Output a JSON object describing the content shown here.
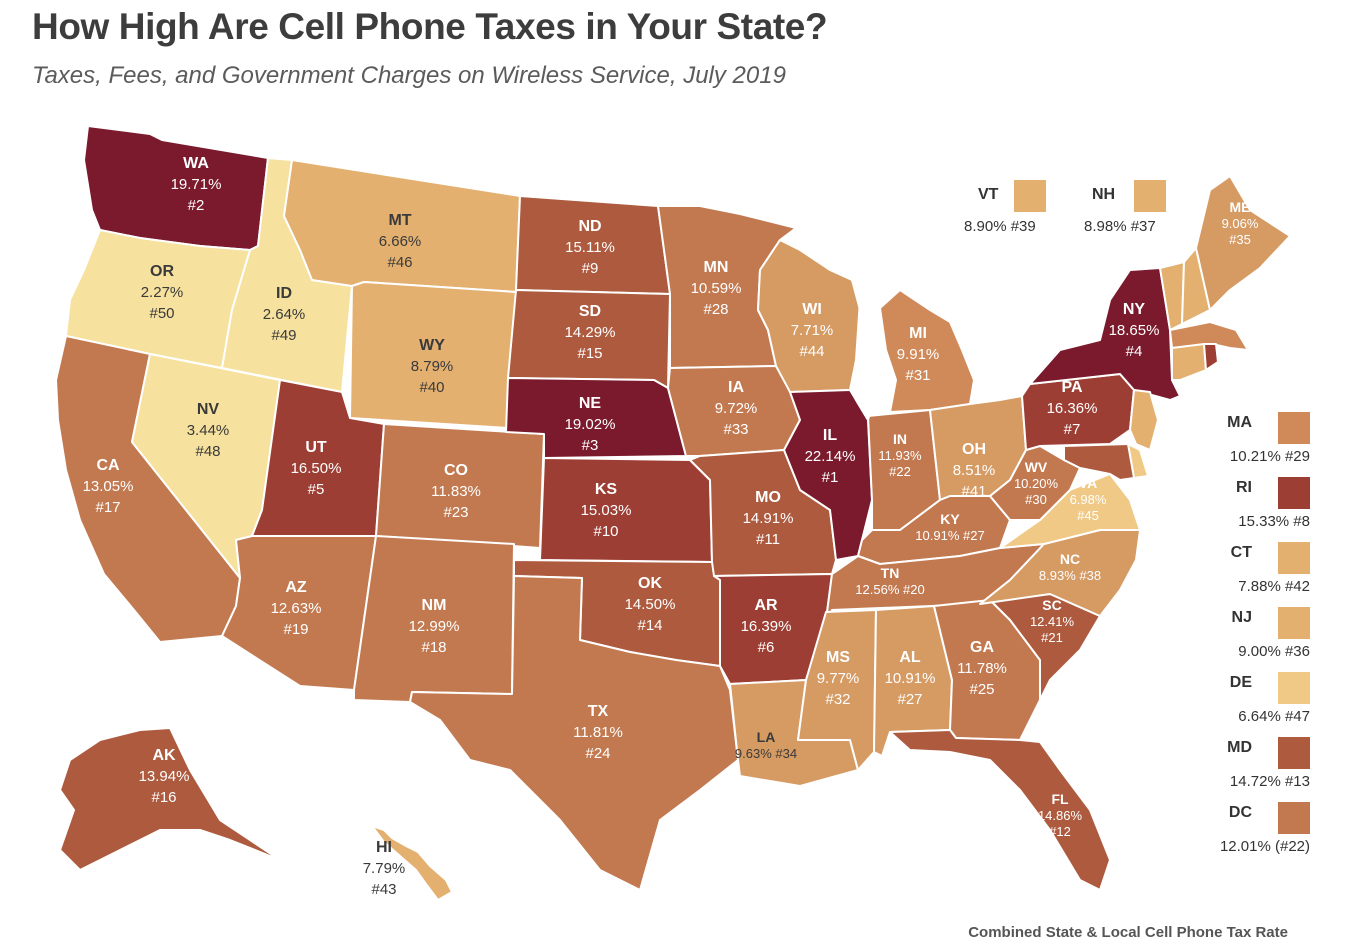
{
  "title": "How High Are Cell Phone Taxes in Your State?",
  "subtitle": "Taxes, Fees, and Government Charges on Wireless Service, July 2019",
  "source_note": "Combined State & Local Cell Phone Tax Rate",
  "colors": {
    "darkest": "#7a1a2c",
    "dark": "#9c3e33",
    "mid_dark": "#ad5a3e",
    "mid": "#c27950",
    "light_mid": "#d69a63",
    "light": "#e3b070",
    "lighter": "#efc985",
    "lightest": "#f6e19e",
    "border": "#ffffff"
  },
  "states": [
    {
      "abbr": "WA",
      "rate": "19.71%",
      "rank": "#2"
    },
    {
      "abbr": "OR",
      "rate": "2.27%",
      "rank": "#50"
    },
    {
      "abbr": "CA",
      "rate": "13.05%",
      "rank": "#17"
    },
    {
      "abbr": "ID",
      "rate": "2.64%",
      "rank": "#49"
    },
    {
      "abbr": "NV",
      "rate": "3.44%",
      "rank": "#48"
    },
    {
      "abbr": "MT",
      "rate": "6.66%",
      "rank": "#46"
    },
    {
      "abbr": "WY",
      "rate": "8.79%",
      "rank": "#40"
    },
    {
      "abbr": "UT",
      "rate": "16.50%",
      "rank": "#5"
    },
    {
      "abbr": "CO",
      "rate": "11.83%",
      "rank": "#23"
    },
    {
      "abbr": "AZ",
      "rate": "12.63%",
      "rank": "#19"
    },
    {
      "abbr": "NM",
      "rate": "12.99%",
      "rank": "#18"
    },
    {
      "abbr": "ND",
      "rate": "15.11%",
      "rank": "#9"
    },
    {
      "abbr": "SD",
      "rate": "14.29%",
      "rank": "#15"
    },
    {
      "abbr": "NE",
      "rate": "19.02%",
      "rank": "#3"
    },
    {
      "abbr": "KS",
      "rate": "15.03%",
      "rank": "#10"
    },
    {
      "abbr": "OK",
      "rate": "14.50%",
      "rank": "#14"
    },
    {
      "abbr": "TX",
      "rate": "11.81%",
      "rank": "#24"
    },
    {
      "abbr": "MN",
      "rate": "10.59%",
      "rank": "#28"
    },
    {
      "abbr": "IA",
      "rate": "9.72%",
      "rank": "#33"
    },
    {
      "abbr": "MO",
      "rate": "14.91%",
      "rank": "#11"
    },
    {
      "abbr": "AR",
      "rate": "16.39%",
      "rank": "#6"
    },
    {
      "abbr": "LA",
      "rate": "9.63%",
      "rank": "#34"
    },
    {
      "abbr": "WI",
      "rate": "7.71%",
      "rank": "#44"
    },
    {
      "abbr": "IL",
      "rate": "22.14%",
      "rank": "#1"
    },
    {
      "abbr": "MI",
      "rate": "9.91%",
      "rank": "#31"
    },
    {
      "abbr": "IN",
      "rate": "11.93%",
      "rank": "#22"
    },
    {
      "abbr": "OH",
      "rate": "8.51%",
      "rank": "#41"
    },
    {
      "abbr": "KY",
      "rate": "10.91%",
      "rank": "#27"
    },
    {
      "abbr": "TN",
      "rate": "12.56%",
      "rank": "#20"
    },
    {
      "abbr": "MS",
      "rate": "9.77%",
      "rank": "#32"
    },
    {
      "abbr": "AL",
      "rate": "10.91%",
      "rank": "#27"
    },
    {
      "abbr": "GA",
      "rate": "11.78%",
      "rank": "#25"
    },
    {
      "abbr": "FL",
      "rate": "14.86%",
      "rank": "#12"
    },
    {
      "abbr": "SC",
      "rate": "12.41%",
      "rank": "#21"
    },
    {
      "abbr": "NC",
      "rate": "8.93%",
      "rank": "#38"
    },
    {
      "abbr": "VA",
      "rate": "6.98%",
      "rank": "#45"
    },
    {
      "abbr": "WV",
      "rate": "10.20%",
      "rank": "#30"
    },
    {
      "abbr": "PA",
      "rate": "16.36%",
      "rank": "#7"
    },
    {
      "abbr": "NY",
      "rate": "18.65%",
      "rank": "#4"
    },
    {
      "abbr": "ME",
      "rate": "9.06%",
      "rank": "#35"
    },
    {
      "abbr": "AK",
      "rate": "13.94%",
      "rank": "#16"
    },
    {
      "abbr": "HI",
      "rate": "7.79%",
      "rank": "#43"
    }
  ],
  "callouts_top": [
    {
      "abbr": "VT",
      "value": "8.90% #39",
      "color": "#e3b070"
    },
    {
      "abbr": "NH",
      "value": "8.98% #37",
      "color": "#e3b070"
    }
  ],
  "callouts_side": [
    {
      "abbr": "MA",
      "value": "10.21% #29",
      "color": "#d08a5a"
    },
    {
      "abbr": "RI",
      "value": "15.33% #8",
      "color": "#9c3e33"
    },
    {
      "abbr": "CT",
      "value": "7.88% #42",
      "color": "#e3b070"
    },
    {
      "abbr": "NJ",
      "value": "9.00% #36",
      "color": "#e3b070"
    },
    {
      "abbr": "DE",
      "value": "6.64% #47",
      "color": "#efc985"
    },
    {
      "abbr": "MD",
      "value": "14.72% #13",
      "color": "#ad5a3e"
    },
    {
      "abbr": "DC",
      "value": "12.01% (#22)",
      "color": "#c27950"
    }
  ]
}
